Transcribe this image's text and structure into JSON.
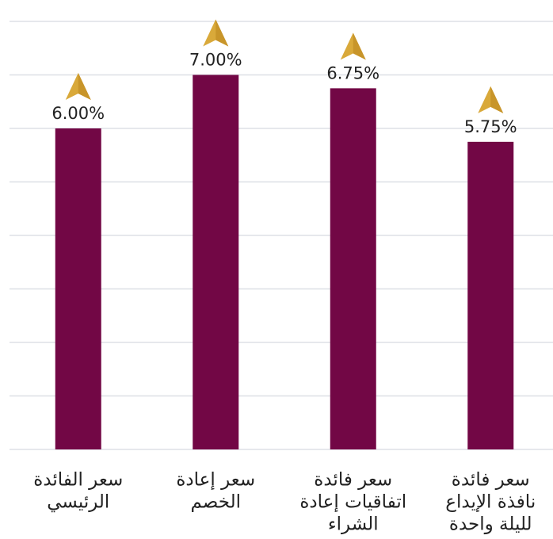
{
  "chart_data": {
    "type": "bar",
    "categories": [
      [
        "سعر الفائدة",
        "الرئيسي"
      ],
      [
        "سعر إعادة",
        "الخصم"
      ],
      [
        "سعر فائدة",
        "اتفاقيات إعادة",
        "الشراء"
      ],
      [
        "سعر فائدة",
        "نافذة الإيداع",
        "لليلة واحدة"
      ]
    ],
    "values": [
      6.0,
      7.0,
      6.75,
      5.75
    ],
    "value_labels": [
      "6.00%",
      "7.00%",
      "6.75%",
      "5.75%"
    ],
    "color": "#720745",
    "ylim": [
      0,
      8
    ],
    "yticks": [
      0,
      1,
      2,
      3,
      4,
      5,
      6,
      7,
      8
    ],
    "grid": true
  }
}
